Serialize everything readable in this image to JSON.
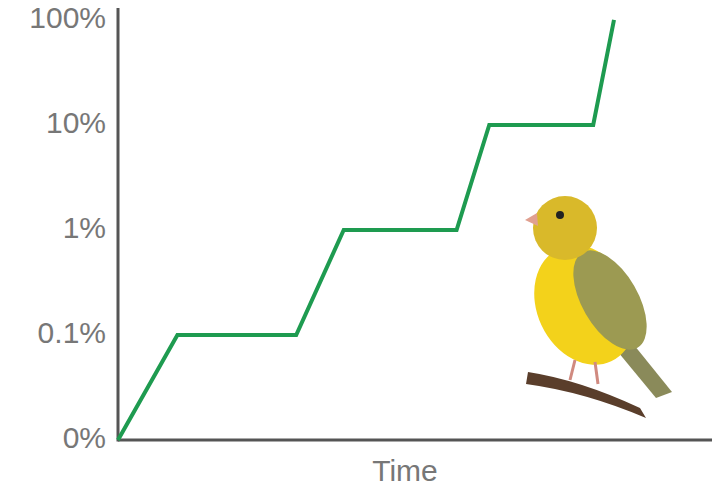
{
  "chart_data": {
    "type": "line",
    "xlabel": "Time",
    "x": [
      0,
      10,
      30,
      38,
      57,
      62.5,
      80,
      83.5
    ],
    "values": [
      0.01,
      0.1,
      0.1,
      1,
      1,
      10,
      10,
      100
    ],
    "color": "#1e9b50",
    "xlim": [
      0,
      100
    ],
    "ylim": [
      0.01,
      130
    ],
    "yticks": [
      {
        "value": 0.01,
        "label": "0%"
      },
      {
        "value": 0.1,
        "label": "0.1%"
      },
      {
        "value": 1,
        "label": "1%"
      },
      {
        "value": 10,
        "label": "10%"
      },
      {
        "value": 100,
        "label": "100%"
      }
    ],
    "log": "y",
    "tick_labels": "y",
    "grid": false
  }
}
